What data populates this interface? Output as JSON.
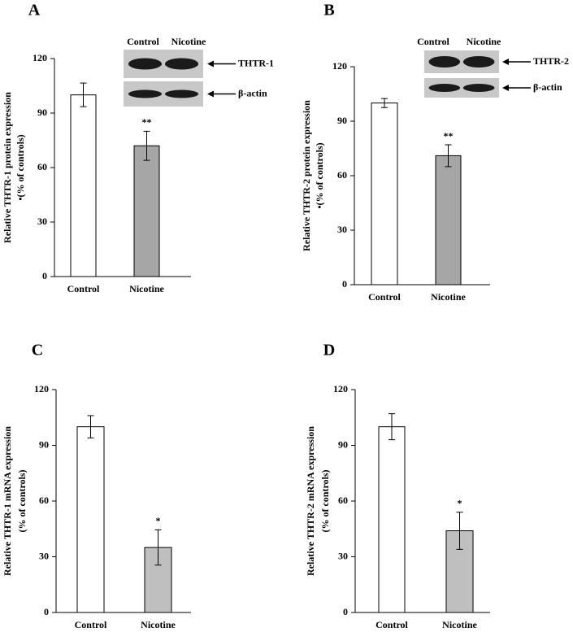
{
  "chart_data": [
    {
      "type": "bar",
      "panel": "A",
      "ylabel": [
        "Relative THTR-1 protein expression",
        "•(% of controls)"
      ],
      "categories": [
        "Control",
        "Nicotine"
      ],
      "values": [
        100,
        72
      ],
      "errors": [
        6.5,
        8
      ],
      "colors": [
        "#ffffff",
        "#a6a6a6"
      ],
      "significance": [
        null,
        "**"
      ],
      "ylim": [
        0,
        120
      ],
      "yticks": [
        0,
        30,
        60,
        90,
        120
      ],
      "blot": {
        "lanes": [
          "Control",
          "Nicotine"
        ],
        "bands": [
          "THTR-1",
          "β-actin"
        ]
      }
    },
    {
      "type": "bar",
      "panel": "B",
      "ylabel": [
        "Relative THTR-2  protein expression",
        "•(% of controls)"
      ],
      "categories": [
        "Control",
        "Nicotine"
      ],
      "values": [
        100,
        71
      ],
      "errors": [
        2.5,
        6
      ],
      "colors": [
        "#ffffff",
        "#a6a6a6"
      ],
      "significance": [
        null,
        "**"
      ],
      "ylim": [
        0,
        120
      ],
      "yticks": [
        0,
        30,
        60,
        90,
        120
      ],
      "blot": {
        "lanes": [
          "Control",
          "Nicotine"
        ],
        "bands": [
          "THTR-2",
          "β-actin"
        ]
      }
    },
    {
      "type": "bar",
      "panel": "C",
      "ylabel": [
        "Relative THTR-1 mRNA expression",
        "(% of controls)"
      ],
      "categories": [
        "Control",
        "Nicotine"
      ],
      "values": [
        100,
        35
      ],
      "errors": [
        6,
        9.5
      ],
      "colors": [
        "#ffffff",
        "#bfbfbf"
      ],
      "significance": [
        null,
        "*"
      ],
      "ylim": [
        0,
        120
      ],
      "yticks": [
        0,
        30,
        60,
        90,
        120
      ]
    },
    {
      "type": "bar",
      "panel": "D",
      "ylabel": [
        "Relative THTR-2 mRNA expression",
        "(% of controls)"
      ],
      "categories": [
        "Control",
        "Nicotine"
      ],
      "values": [
        100,
        44
      ],
      "errors": [
        7,
        10
      ],
      "colors": [
        "#ffffff",
        "#bfbfbf"
      ],
      "significance": [
        null,
        "*"
      ],
      "ylim": [
        0,
        120
      ],
      "yticks": [
        0,
        30,
        60,
        90,
        120
      ]
    }
  ]
}
